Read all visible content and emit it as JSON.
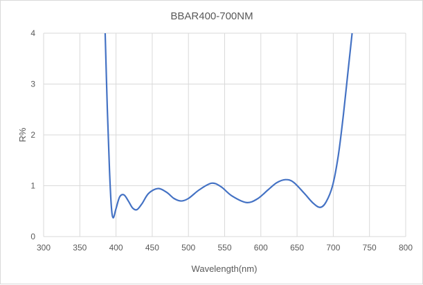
{
  "chart_data": {
    "type": "line",
    "title": "BBAR400-700NM",
    "xlabel": "Wavelength(nm)",
    "ylabel": "R%",
    "xlim": [
      300,
      800
    ],
    "ylim": [
      0,
      4
    ],
    "xticks": [
      300,
      350,
      400,
      450,
      500,
      550,
      600,
      650,
      700,
      750,
      800
    ],
    "yticks": [
      0,
      1,
      2,
      3,
      4
    ],
    "grid": true,
    "line_color": "#4472c4",
    "series": [
      {
        "x": [
          385,
          388,
          391,
          393.5,
          396,
          400,
          405,
          411,
          417,
          423,
          429,
          436,
          445,
          458,
          470,
          480,
          490,
          500,
          515,
          532,
          545,
          560,
          580,
          595,
          610,
          622,
          634,
          645,
          660,
          672,
          682,
          690,
          699,
          707,
          714,
          720,
          726
        ],
        "y": [
          4.0,
          2.5,
          1.3,
          0.6,
          0.37,
          0.55,
          0.78,
          0.82,
          0.7,
          0.56,
          0.53,
          0.65,
          0.85,
          0.945,
          0.87,
          0.75,
          0.7,
          0.75,
          0.92,
          1.05,
          0.98,
          0.8,
          0.67,
          0.74,
          0.92,
          1.06,
          1.12,
          1.07,
          0.85,
          0.66,
          0.575,
          0.68,
          1.0,
          1.6,
          2.4,
          3.2,
          4.0
        ]
      }
    ]
  }
}
